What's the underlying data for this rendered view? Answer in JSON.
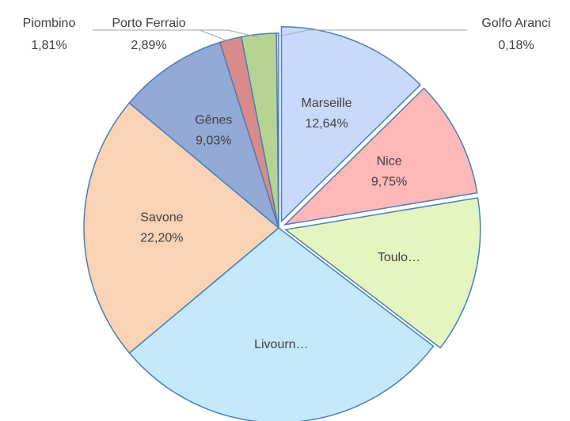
{
  "chart_data": {
    "type": "pie",
    "categories": [
      "Marseille",
      "Nice",
      "Toulo…",
      "Livourn…",
      "Savone",
      "Gênes",
      "Piombino",
      "Porto Ferraio",
      "Golfo Aranci"
    ],
    "values": [
      12.64,
      9.75,
      13.0,
      28.5,
      22.2,
      9.03,
      1.81,
      2.89,
      0.18
    ],
    "value_labels": [
      "12,64%",
      "9,75%",
      null,
      null,
      "22,20%",
      "9,03%",
      "1,81%",
      "2,89%",
      "0,18%"
    ],
    "colors": [
      "#c9d9fb",
      "#ffb8b8",
      "#e4f5bf",
      "#c3e9fa",
      "#fad3b4",
      "#93a9d6",
      "#d98b8b",
      "#b7d392",
      "#dde6f7"
    ],
    "explode": [
      true,
      true,
      true,
      false,
      false,
      false,
      false,
      false,
      false
    ]
  }
}
